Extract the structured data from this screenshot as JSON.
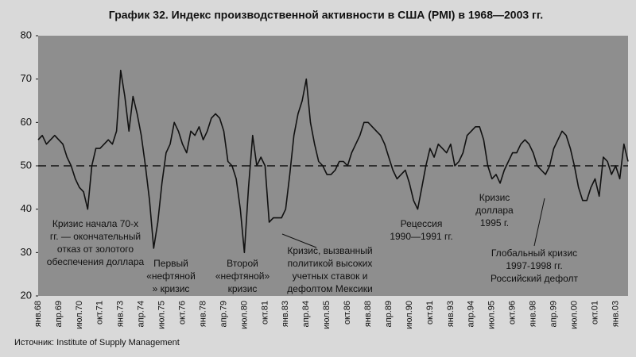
{
  "chart_data": {
    "type": "line",
    "title": "График 32. Индекс производственной активности в США (PMI) в 1968—2003 гг.",
    "source": "Источник: Institute of Supply Management",
    "categories": [
      "янв.68",
      null,
      null,
      null,
      null,
      "апр.69",
      null,
      null,
      null,
      null,
      "июл.70",
      null,
      null,
      null,
      null,
      "окт.71",
      null,
      null,
      null,
      null,
      "янв.73",
      null,
      null,
      null,
      null,
      "апр.74",
      null,
      null,
      null,
      null,
      "июл.75",
      null,
      null,
      null,
      null,
      "окт.76",
      null,
      null,
      null,
      null,
      "янв.78",
      null,
      null,
      null,
      null,
      "апр.79",
      null,
      null,
      null,
      null,
      "июл.80",
      null,
      null,
      null,
      null,
      "окт.81",
      null,
      null,
      null,
      null,
      "янв.83",
      null,
      null,
      null,
      null,
      "апр.84",
      null,
      null,
      null,
      null,
      "июл.85",
      null,
      null,
      null,
      null,
      "окт.86",
      null,
      null,
      null,
      null,
      "янв.88",
      null,
      null,
      null,
      null,
      "апр.89",
      null,
      null,
      null,
      null,
      "июл.90",
      null,
      null,
      null,
      null,
      "окт.91",
      null,
      null,
      null,
      null,
      "янв.93",
      null,
      null,
      null,
      null,
      "апр.94",
      null,
      null,
      null,
      null,
      "июл.95",
      null,
      null,
      null,
      null,
      "окт.96",
      null,
      null,
      null,
      null,
      "янв.98",
      null,
      null,
      null,
      null,
      "апр.99",
      null,
      null,
      null,
      null,
      "июл.00",
      null,
      null,
      null,
      null,
      "окт.01",
      null,
      null,
      null,
      null,
      "янв.03",
      null,
      null,
      null
    ],
    "series": [
      {
        "color": "#111111",
        "values": [
          56,
          57,
          55,
          56,
          57,
          56,
          55,
          52,
          50,
          47,
          45,
          44,
          40,
          50,
          54,
          54,
          55,
          56,
          55,
          58,
          72,
          66,
          58,
          66,
          62,
          57,
          50,
          42,
          31,
          37,
          46,
          53,
          55,
          60,
          58,
          55,
          53,
          58,
          57,
          59,
          56,
          58,
          61,
          62,
          61,
          58,
          51,
          50,
          47,
          40,
          30,
          45,
          57,
          50,
          52,
          50,
          37,
          38,
          38,
          38,
          40,
          48,
          57,
          62,
          65,
          70,
          60,
          55,
          51,
          50,
          48,
          48,
          49,
          51,
          51,
          50,
          53,
          55,
          57,
          60,
          60,
          59,
          58,
          57,
          55,
          52,
          49,
          47,
          48,
          49,
          46,
          42,
          40,
          45,
          50,
          54,
          52,
          55,
          54,
          53,
          55,
          50,
          51,
          53,
          57,
          58,
          59,
          59,
          56,
          50,
          47,
          48,
          46,
          49,
          51,
          53,
          53,
          55,
          56,
          55,
          53,
          50,
          49,
          48,
          50,
          54,
          56,
          58,
          57,
          54,
          50,
          45,
          42,
          42,
          45,
          47,
          43,
          52,
          51,
          48,
          50,
          47,
          55,
          51
        ]
      }
    ],
    "ylim": [
      20,
      80
    ],
    "yticks": [
      20,
      30,
      40,
      50,
      60,
      70,
      80
    ],
    "reference_line": 50,
    "annotations": [
      [
        "Кризис начала 70-х",
        "гг. — окончательный",
        "отказ от золотого",
        "обеспечения доллара"
      ],
      [
        "Первый",
        "«нефтяной",
        "» кризис"
      ],
      [
        "Второй",
        "«нефтяной»",
        "кризис"
      ],
      [
        "Кризис, вызванный",
        "политикой высоких",
        "учетных ставок и",
        "дефолтом Мексики"
      ],
      [
        "Рецессия",
        "1990—1991 гг."
      ],
      [
        "Кризис",
        "доллара",
        "1995 г."
      ],
      [
        "Глобальный кризис",
        "1997-1998 гг.",
        "Российский дефолт"
      ]
    ]
  }
}
